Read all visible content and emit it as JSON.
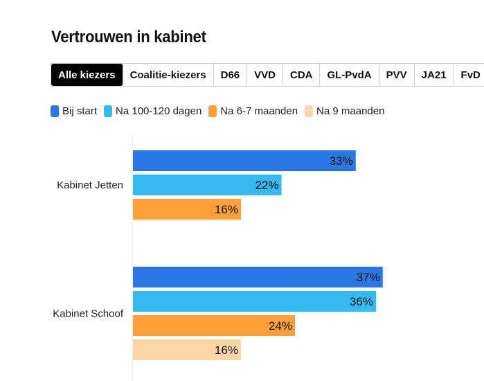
{
  "title": "Vertrouwen in kabinet",
  "tabs": [
    {
      "label": "Alle kiezers",
      "active": true
    },
    {
      "label": "Coalitie-kiezers",
      "active": false
    },
    {
      "label": "D66",
      "active": false
    },
    {
      "label": "VVD",
      "active": false
    },
    {
      "label": "CDA",
      "active": false
    },
    {
      "label": "GL-PvdA",
      "active": false
    },
    {
      "label": "PVV",
      "active": false
    },
    {
      "label": "JA21",
      "active": false
    },
    {
      "label": "FvD",
      "active": false
    }
  ],
  "chart_data": {
    "type": "bar",
    "orientation": "horizontal",
    "categories": [
      "Kabinet Jetten",
      "Kabinet Schoof"
    ],
    "series": [
      {
        "name": "Bij start",
        "color": "#2b78e4",
        "values": [
          33,
          37
        ]
      },
      {
        "name": "Na 100-120 dagen",
        "color": "#36b8f0",
        "values": [
          22,
          36
        ]
      },
      {
        "name": "Na 6-7 maanden",
        "color": "#ff9f3a",
        "values": [
          16,
          24
        ]
      },
      {
        "name": "Na 9 maanden",
        "color": "#fdd6a8",
        "values": [
          null,
          16
        ]
      }
    ],
    "value_suffix": "%",
    "legend_position": "top",
    "grid": false
  }
}
